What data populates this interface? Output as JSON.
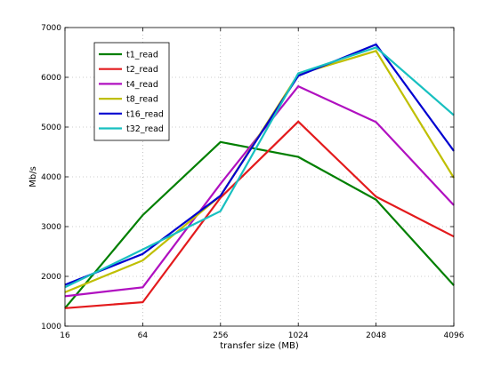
{
  "chart_data": {
    "type": "line",
    "title": "",
    "xlabel": "transfer size (MB)",
    "ylabel": "Mb/s",
    "categories": [
      "16",
      "64",
      "256",
      "1024",
      "2048",
      "4096"
    ],
    "ylim": [
      1000,
      7000
    ],
    "yticks": [
      "1000",
      "2000",
      "3000",
      "4000",
      "5000",
      "6000",
      "7000"
    ],
    "grid": true,
    "legend_position": "top-left",
    "series": [
      {
        "name": "t1_read",
        "color": "#007f00",
        "values": [
          1360,
          3230,
          4700,
          4400,
          3540,
          1820
        ]
      },
      {
        "name": "t2_read",
        "color": "#e31a1c",
        "values": [
          1360,
          1480,
          3580,
          5110,
          3600,
          2800
        ]
      },
      {
        "name": "t4_read",
        "color": "#b010c0",
        "values": [
          1600,
          1780,
          3860,
          5820,
          5100,
          3430
        ]
      },
      {
        "name": "t8_read",
        "color": "#bfbf00",
        "values": [
          1680,
          2320,
          3620,
          6060,
          6530,
          3980
        ]
      },
      {
        "name": "t16_read",
        "color": "#0000d0",
        "values": [
          1830,
          2450,
          3620,
          6030,
          6660,
          4520
        ]
      },
      {
        "name": "t32_read",
        "color": "#18c0c0",
        "values": [
          1780,
          2540,
          3310,
          6080,
          6600,
          5240
        ]
      }
    ]
  }
}
